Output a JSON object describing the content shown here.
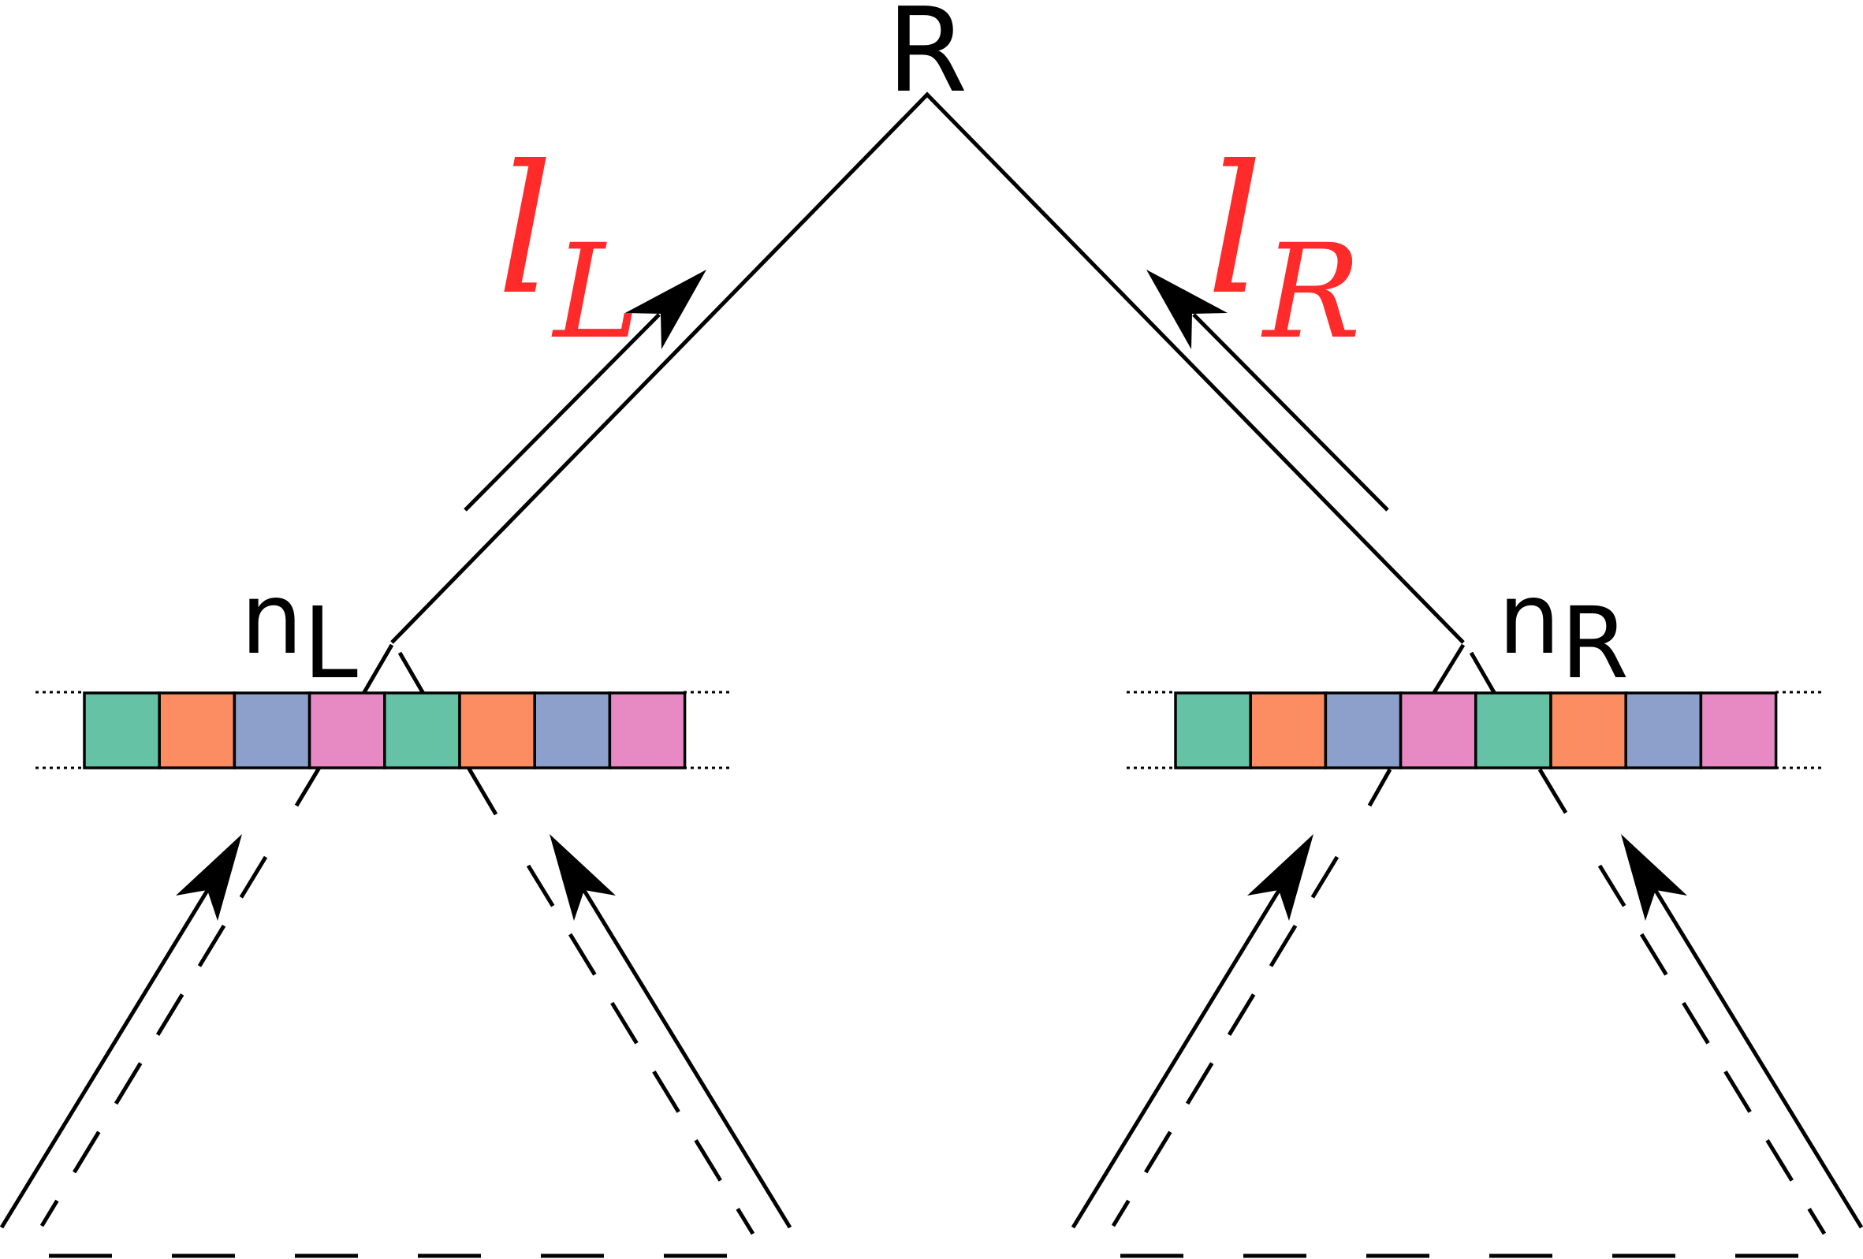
{
  "diagram": {
    "root": {
      "label": "R"
    },
    "left_node": {
      "name": "n",
      "subscript": "L"
    },
    "right_node": {
      "name": "n",
      "subscript": "R"
    },
    "left_edge_label": {
      "name": "l",
      "subscript": "L",
      "color": "#ff2a2a"
    },
    "right_edge_label": {
      "name": "l",
      "subscript": "R",
      "color": "#ff2a2a"
    },
    "vector_colors": [
      "#66c2a5",
      "#fc8d62",
      "#8da0cb",
      "#e78ac3",
      "#66c2a5",
      "#fc8d62",
      "#8da0cb",
      "#e78ac3"
    ]
  }
}
